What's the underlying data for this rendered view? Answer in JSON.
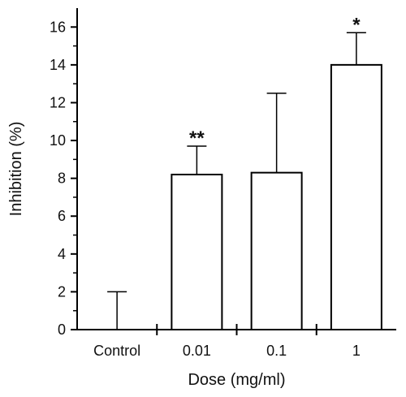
{
  "chart_data": {
    "type": "bar",
    "title": "",
    "xlabel": "Dose (mg/ml)",
    "ylabel": "Inhibition (%)",
    "ylim": [
      0,
      17
    ],
    "yticks": [
      "0",
      "2",
      "4",
      "6",
      "8",
      "10",
      "12",
      "14",
      "16"
    ],
    "grid": false,
    "categories": [
      "Control",
      "0.01",
      "0.1",
      "1"
    ],
    "values": [
      0,
      8.2,
      8.3,
      14.0
    ],
    "errors": [
      2.0,
      1.5,
      4.2,
      1.7
    ],
    "significance": [
      "",
      "**",
      "",
      "*"
    ],
    "bar_color": "#ffffff",
    "line_color": "#000000"
  }
}
